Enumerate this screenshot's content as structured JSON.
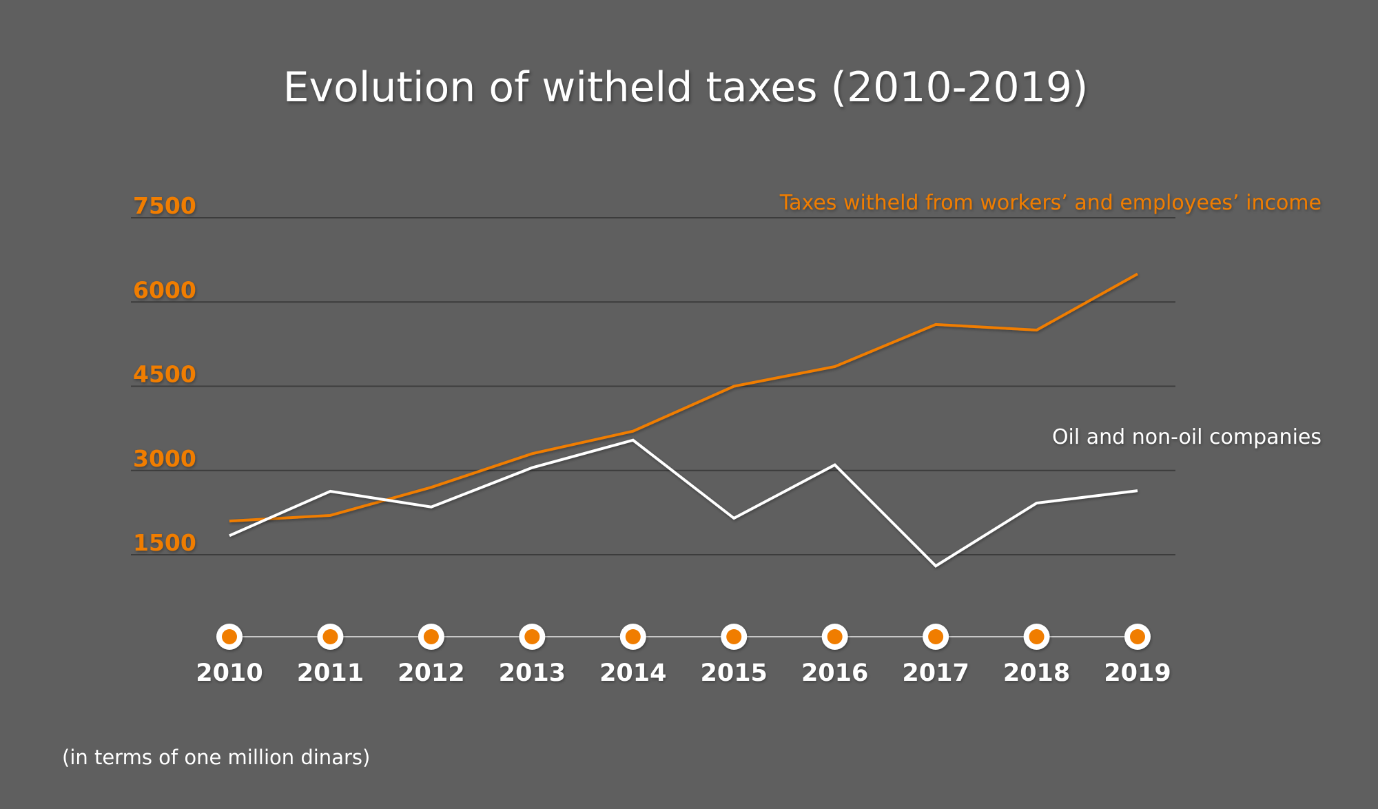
{
  "chart_data": {
    "type": "line",
    "title": "Evolution of witheld taxes (2010-2019)",
    "note": "(in terms of one million dinars)",
    "x": [
      "2010",
      "2011",
      "2012",
      "2013",
      "2014",
      "2015",
      "2016",
      "2017",
      "2018",
      "2019"
    ],
    "y_ticks": [
      "7500",
      "6000",
      "4500",
      "3000",
      "1500"
    ],
    "ylim": [
      1500,
      7500
    ],
    "grid": true,
    "series": [
      {
        "name": "Taxes witheld from workers’ and employees’ income",
        "color": "#f07d00",
        "values": [
          2100,
          2200,
          2700,
          3300,
          3700,
          4500,
          4850,
          5600,
          5500,
          6500
        ]
      },
      {
        "name": "Oil and non-oil companies",
        "color": "#ffffff",
        "values": [
          1840,
          2630,
          2350,
          3050,
          3540,
          2150,
          3100,
          1300,
          2420,
          2640
        ]
      }
    ],
    "colors": {
      "background": "#5f5f5f",
      "accent": "#f07d00",
      "grid": "#3c3c3c",
      "text": "#ffffff"
    }
  }
}
